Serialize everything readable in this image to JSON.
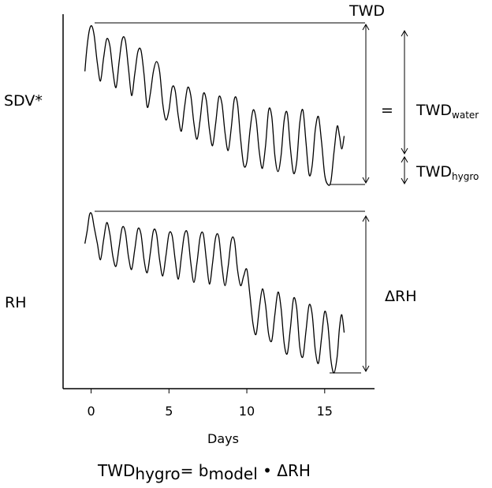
{
  "labels": {
    "sdv": "SDV*",
    "rh": "RH",
    "twd": "TWD",
    "equals": "=",
    "twd_water_main": "TWD",
    "twd_water_sub": "water",
    "twd_hygro_main": "TWD",
    "twd_hygro_sub": "hygro",
    "delta_rh": "ΔRH"
  },
  "equation": {
    "lhs_main": "TWD",
    "lhs_sub": "hygro",
    "equals": "= ",
    "b_main": "b",
    "b_sub": "model",
    "dot": " • ",
    "rhs": "ΔRH"
  },
  "chart_data": {
    "type": "line",
    "xlabel": "Days",
    "x_ticks": [
      "0",
      "5",
      "10",
      "15"
    ],
    "x_tick_values": [
      0,
      5,
      10,
      15
    ],
    "xlim": [
      -1.8,
      18.2
    ],
    "grid": false,
    "series": [
      {
        "panel": "top",
        "x": [
          -0.4,
          -0.25,
          -0.1,
          0.05,
          0.2,
          0.4,
          0.6,
          0.8,
          1.0,
          1.2,
          1.4,
          1.6,
          1.8,
          2.0,
          2.2,
          2.4,
          2.6,
          2.8,
          3.0,
          3.2,
          3.4,
          3.6,
          3.8,
          4.0,
          4.2,
          4.4,
          4.6,
          4.8,
          5.0,
          5.2,
          5.4,
          5.6,
          5.8,
          6.0,
          6.2,
          6.4,
          6.6,
          6.8,
          7.0,
          7.2,
          7.4,
          7.6,
          7.8,
          8.0,
          8.2,
          8.4,
          8.6,
          8.8,
          9.0,
          9.2,
          9.4,
          9.6,
          9.8,
          10.0,
          10.2,
          10.4,
          10.6,
          10.8,
          11.0,
          11.2,
          11.4,
          11.6,
          11.8,
          12.0,
          12.2,
          12.4,
          12.6,
          12.8,
          13.0,
          13.2,
          13.4,
          13.6,
          13.8,
          14.0,
          14.2,
          14.4,
          14.6,
          14.8,
          15.0,
          15.2,
          15.4,
          15.6,
          15.8,
          15.95,
          16.1,
          16.25
        ],
        "y": [
          0.7,
          0.86,
          0.96,
          0.98,
          0.92,
          0.75,
          0.64,
          0.78,
          0.9,
          0.86,
          0.7,
          0.6,
          0.76,
          0.9,
          0.89,
          0.72,
          0.55,
          0.68,
          0.82,
          0.83,
          0.68,
          0.48,
          0.56,
          0.7,
          0.76,
          0.7,
          0.5,
          0.4,
          0.46,
          0.6,
          0.58,
          0.42,
          0.33,
          0.48,
          0.6,
          0.55,
          0.38,
          0.28,
          0.4,
          0.56,
          0.52,
          0.34,
          0.24,
          0.38,
          0.54,
          0.5,
          0.32,
          0.21,
          0.35,
          0.53,
          0.5,
          0.28,
          0.12,
          0.14,
          0.33,
          0.46,
          0.4,
          0.2,
          0.1,
          0.24,
          0.46,
          0.42,
          0.18,
          0.08,
          0.18,
          0.4,
          0.44,
          0.22,
          0.07,
          0.14,
          0.38,
          0.46,
          0.26,
          0.06,
          0.12,
          0.34,
          0.42,
          0.26,
          0.06,
          0.0,
          0.02,
          0.2,
          0.36,
          0.3,
          0.22,
          0.3
        ]
      },
      {
        "panel": "bottom",
        "x": [
          -0.4,
          -0.25,
          -0.1,
          0.05,
          0.2,
          0.4,
          0.6,
          0.8,
          1.0,
          1.2,
          1.4,
          1.6,
          1.8,
          2.0,
          2.2,
          2.4,
          2.6,
          2.8,
          3.0,
          3.2,
          3.4,
          3.6,
          3.8,
          4.0,
          4.2,
          4.4,
          4.6,
          4.8,
          5.0,
          5.2,
          5.4,
          5.6,
          5.8,
          6.0,
          6.2,
          6.4,
          6.6,
          6.8,
          7.0,
          7.2,
          7.4,
          7.6,
          7.8,
          8.0,
          8.2,
          8.4,
          8.6,
          8.8,
          9.0,
          9.2,
          9.4,
          9.6,
          9.8,
          10.0,
          10.2,
          10.4,
          10.6,
          10.8,
          11.0,
          11.2,
          11.4,
          11.6,
          11.8,
          12.0,
          12.2,
          12.4,
          12.6,
          12.8,
          13.0,
          13.2,
          13.4,
          13.6,
          13.8,
          14.0,
          14.2,
          14.4,
          14.6,
          14.8,
          15.0,
          15.2,
          15.4,
          15.6,
          15.8,
          15.95,
          16.1,
          16.25
        ],
        "y": [
          0.8,
          0.88,
          0.98,
          0.98,
          0.9,
          0.8,
          0.7,
          0.82,
          0.93,
          0.86,
          0.72,
          0.66,
          0.78,
          0.9,
          0.87,
          0.72,
          0.64,
          0.76,
          0.89,
          0.86,
          0.7,
          0.62,
          0.74,
          0.88,
          0.86,
          0.7,
          0.6,
          0.72,
          0.86,
          0.85,
          0.7,
          0.58,
          0.72,
          0.86,
          0.86,
          0.68,
          0.56,
          0.68,
          0.84,
          0.86,
          0.7,
          0.55,
          0.68,
          0.84,
          0.84,
          0.66,
          0.54,
          0.66,
          0.82,
          0.82,
          0.64,
          0.54,
          0.6,
          0.64,
          0.48,
          0.3,
          0.24,
          0.4,
          0.52,
          0.42,
          0.24,
          0.2,
          0.36,
          0.5,
          0.4,
          0.18,
          0.12,
          0.28,
          0.46,
          0.4,
          0.16,
          0.1,
          0.26,
          0.42,
          0.36,
          0.14,
          0.06,
          0.22,
          0.38,
          0.3,
          0.08,
          0.0,
          0.1,
          0.28,
          0.36,
          0.25
        ]
      }
    ]
  }
}
